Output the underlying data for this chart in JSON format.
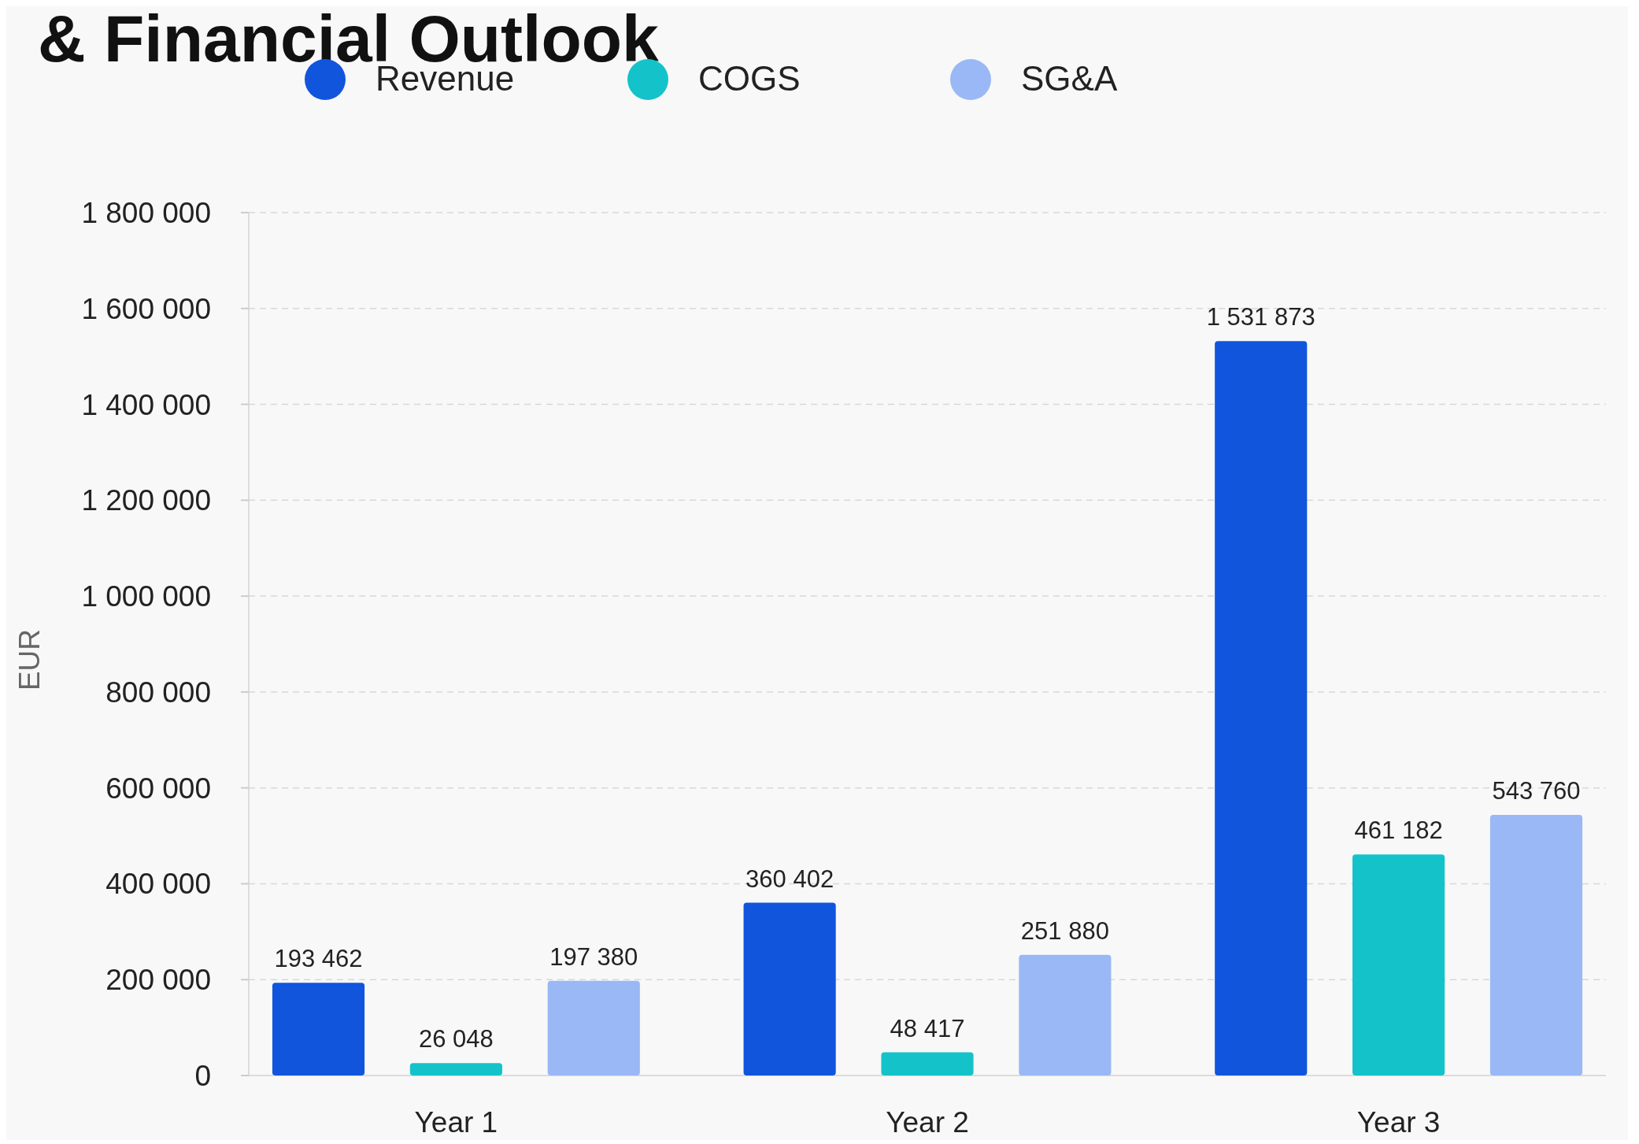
{
  "chart_data": {
    "type": "bar",
    "title": "& Financial Outlook",
    "ylabel": "EUR",
    "categories": [
      "Year 1",
      "Year 2",
      "Year 3"
    ],
    "series": [
      {
        "name": "Revenue",
        "color": "#1155dd",
        "values": [
          193462,
          360402,
          1531873
        ],
        "value_labels": [
          "193 462",
          "360 402",
          "1 531 873"
        ]
      },
      {
        "name": "COGS",
        "color": "#14c3c9",
        "values": [
          26048,
          48417,
          461182
        ],
        "value_labels": [
          "26 048",
          "48 417",
          "461 182"
        ]
      },
      {
        "name": "SG&A",
        "color": "#99b8f5",
        "values": [
          197380,
          251880,
          543760
        ],
        "value_labels": [
          "197 380",
          "251 880",
          "543 760"
        ]
      }
    ],
    "ylim": [
      0,
      1800000
    ],
    "yticks": [
      0,
      {
        "value": 200000,
        "label": "200 000"
      },
      {
        "value": 400000,
        "label": "400 000"
      },
      {
        "value": 600000,
        "label": "600 000"
      },
      {
        "value": 800000,
        "label": "800 000"
      },
      {
        "value": 1000000,
        "label": "1 000 000"
      },
      {
        "value": 1200000,
        "label": "1 200 000"
      },
      {
        "value": 1400000,
        "label": "1 400 000"
      },
      {
        "value": 1600000,
        "label": "1 600 000"
      },
      {
        "value": 1800000,
        "label": "1 800 000"
      }
    ],
    "grid": "y",
    "legend": "top"
  }
}
